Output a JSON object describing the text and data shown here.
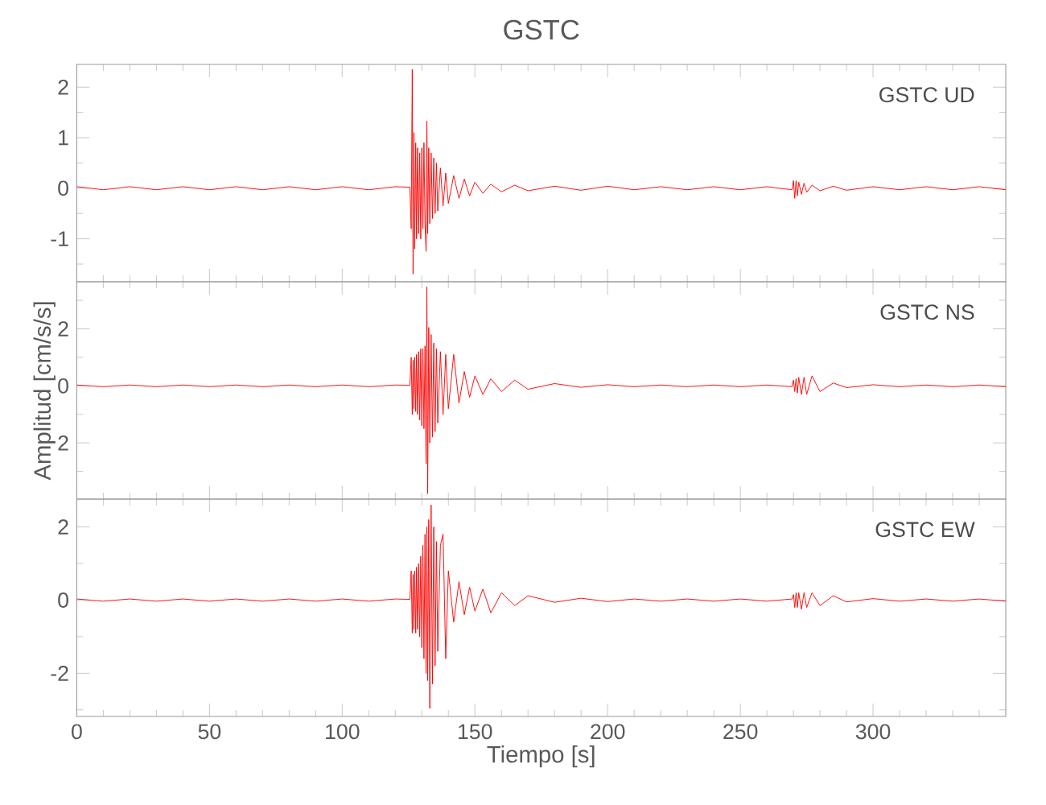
{
  "chart_data": [
    {
      "type": "line",
      "title": "GSTC",
      "annotations": [
        "GSTC UD"
      ],
      "color": "#ff0000",
      "tick_labels": "y",
      "xlim": [
        0,
        350
      ],
      "ylim": [
        -1.85,
        2.45
      ],
      "xticks": [
        0,
        {
          "value": 10,
          "label": null
        },
        {
          "value": 20,
          "label": null
        },
        {
          "value": 30,
          "label": null
        },
        {
          "value": 40,
          "label": null
        },
        50,
        {
          "value": 60,
          "label": null
        },
        {
          "value": 70,
          "label": null
        },
        {
          "value": 80,
          "label": null
        },
        {
          "value": 90,
          "label": null
        },
        100,
        {
          "value": 110,
          "label": null
        },
        {
          "value": 120,
          "label": null
        },
        {
          "value": 130,
          "label": null
        },
        {
          "value": 140,
          "label": null
        },
        150,
        {
          "value": 160,
          "label": null
        },
        {
          "value": 170,
          "label": null
        },
        {
          "value": 180,
          "label": null
        },
        {
          "value": 190,
          "label": null
        },
        200,
        {
          "value": 210,
          "label": null
        },
        {
          "value": 220,
          "label": null
        },
        {
          "value": 230,
          "label": null
        },
        {
          "value": 240,
          "label": null
        },
        250,
        {
          "value": 260,
          "label": null
        },
        {
          "value": 270,
          "label": null
        },
        {
          "value": 280,
          "label": null
        },
        {
          "value": 290,
          "label": null
        },
        300,
        {
          "value": 310,
          "label": null
        },
        {
          "value": 320,
          "label": null
        },
        {
          "value": 330,
          "label": null
        },
        {
          "value": 340,
          "label": null
        }
      ],
      "yticks": [
        {
          "value": -1.5,
          "label": null
        },
        -1,
        {
          "value": -0.5,
          "label": null
        },
        0,
        {
          "value": 0.5,
          "label": null
        },
        1,
        {
          "value": 1.5,
          "label": null
        },
        2
      ],
      "x": [
        0,
        10,
        20,
        30,
        40,
        50,
        60,
        70,
        80,
        90,
        100,
        110,
        120,
        125.5,
        126.0,
        126.4,
        126.7,
        127.0,
        127.3,
        127.7,
        128.0,
        128.4,
        128.8,
        129.2,
        129.6,
        130.0,
        130.4,
        130.8,
        131.2,
        131.6,
        131.9,
        132.2,
        132.6,
        133.0,
        133.5,
        134.0,
        134.5,
        135,
        135.5,
        136,
        137,
        138,
        139,
        140,
        142,
        144,
        146,
        148,
        150,
        153,
        156,
        160,
        165,
        170,
        180,
        190,
        200,
        210,
        220,
        230,
        240,
        250,
        260,
        269.5,
        270,
        270.5,
        271,
        271.5,
        272,
        273,
        274,
        275,
        277,
        280,
        285,
        290,
        300,
        310,
        320,
        330,
        340,
        350
      ],
      "values": [
        0.03,
        -0.03,
        0.03,
        -0.03,
        0.03,
        -0.03,
        0.03,
        -0.03,
        0.03,
        -0.03,
        0.03,
        -0.03,
        0.03,
        0.02,
        -0.8,
        2.35,
        -1.7,
        1.1,
        -1.2,
        0.9,
        -1.0,
        0.8,
        -0.9,
        0.7,
        -1.0,
        0.8,
        -0.8,
        0.9,
        -0.7,
        -1.25,
        1.33,
        -0.9,
        0.8,
        -0.7,
        0.7,
        -0.6,
        0.6,
        -0.5,
        0.5,
        -0.45,
        0.4,
        -0.35,
        0.3,
        -0.3,
        0.25,
        -0.2,
        0.18,
        -0.15,
        0.12,
        -0.1,
        0.08,
        -0.07,
        0.06,
        -0.05,
        0.04,
        -0.04,
        0.04,
        -0.03,
        0.03,
        -0.03,
        0.03,
        -0.03,
        0.03,
        -0.03,
        0.15,
        -0.2,
        0.15,
        -0.15,
        0.12,
        -0.12,
        0.1,
        -0.08,
        0.06,
        -0.05,
        0.04,
        -0.04,
        0.03,
        -0.03,
        0.03,
        -0.03,
        0.03,
        -0.03
      ]
    },
    {
      "type": "line",
      "ylabel": "Amplitud [cm/s/s]",
      "annotations": [
        "GSTC NS"
      ],
      "color": "#ff0000",
      "tick_labels": "y",
      "xlim": [
        0,
        350
      ],
      "ylim": [
        -3.97,
        3.65
      ],
      "xticks": [
        0,
        {
          "value": 10,
          "label": null
        },
        {
          "value": 20,
          "label": null
        },
        {
          "value": 30,
          "label": null
        },
        {
          "value": 40,
          "label": null
        },
        50,
        {
          "value": 60,
          "label": null
        },
        {
          "value": 70,
          "label": null
        },
        {
          "value": 80,
          "label": null
        },
        {
          "value": 90,
          "label": null
        },
        100,
        {
          "value": 110,
          "label": null
        },
        {
          "value": 120,
          "label": null
        },
        {
          "value": 130,
          "label": null
        },
        {
          "value": 140,
          "label": null
        },
        150,
        {
          "value": 160,
          "label": null
        },
        {
          "value": 170,
          "label": null
        },
        {
          "value": 180,
          "label": null
        },
        {
          "value": 190,
          "label": null
        },
        200,
        {
          "value": 210,
          "label": null
        },
        {
          "value": 220,
          "label": null
        },
        {
          "value": 230,
          "label": null
        },
        {
          "value": 240,
          "label": null
        },
        250,
        {
          "value": 260,
          "label": null
        },
        {
          "value": 270,
          "label": null
        },
        {
          "value": 280,
          "label": null
        },
        {
          "value": 290,
          "label": null
        },
        300,
        {
          "value": 310,
          "label": null
        },
        {
          "value": 320,
          "label": null
        },
        {
          "value": 330,
          "label": null
        },
        {
          "value": 340,
          "label": null
        }
      ],
      "yticks": [
        {
          "value": -3,
          "label": null
        },
        {
          "value": -2,
          "label": "2"
        },
        {
          "value": -1,
          "label": null
        },
        0,
        {
          "value": 1,
          "label": null
        },
        2,
        {
          "value": 3,
          "label": null
        }
      ],
      "x": [
        0,
        10,
        20,
        30,
        40,
        50,
        60,
        70,
        80,
        90,
        100,
        110,
        120,
        125.5,
        126.0,
        126.4,
        126.7,
        127.0,
        127.3,
        127.7,
        128.0,
        128.4,
        128.8,
        129.2,
        129.6,
        130.0,
        130.4,
        130.8,
        131.2,
        131.6,
        131.9,
        132.2,
        132.6,
        133.0,
        133.5,
        134.0,
        134.5,
        135,
        135.5,
        136,
        137,
        138,
        139,
        140,
        142,
        144,
        146,
        148,
        150,
        153,
        156,
        160,
        165,
        170,
        180,
        190,
        200,
        210,
        220,
        230,
        240,
        250,
        260,
        269.5,
        270,
        270.5,
        271,
        271.5,
        272,
        273,
        274,
        275,
        277,
        280,
        285,
        290,
        300,
        310,
        320,
        330,
        340,
        350
      ],
      "values": [
        0.03,
        -0.03,
        0.03,
        -0.03,
        0.03,
        -0.03,
        0.03,
        -0.03,
        0.03,
        -0.03,
        0.03,
        -0.03,
        0.03,
        0.02,
        1.0,
        -1.0,
        0.9,
        -0.8,
        1.0,
        -0.9,
        1.1,
        -1.0,
        1.2,
        -1.2,
        1.3,
        -1.4,
        1.3,
        -1.5,
        1.4,
        -2.73,
        3.47,
        -3.78,
        2.05,
        -2.0,
        1.8,
        -1.8,
        1.5,
        -1.6,
        1.3,
        -1.3,
        1.2,
        -1.0,
        1.1,
        -0.8,
        1.1,
        -0.6,
        0.5,
        -0.4,
        0.35,
        -0.3,
        0.25,
        -0.2,
        0.2,
        -0.12,
        0.08,
        -0.05,
        0.04,
        -0.03,
        0.03,
        -0.03,
        0.03,
        -0.03,
        0.03,
        -0.03,
        0.2,
        -0.2,
        0.25,
        -0.25,
        0.3,
        -0.3,
        0.3,
        -0.3,
        0.35,
        -0.2,
        0.1,
        -0.06,
        0.04,
        -0.03,
        0.03,
        -0.03,
        0.03,
        -0.03
      ]
    },
    {
      "type": "line",
      "xlabel": "Tiempo [s]",
      "annotations": [
        "GSTC EW"
      ],
      "color": "#ff0000",
      "xlim": [
        0,
        350
      ],
      "ylim": [
        -3.18,
        2.76
      ],
      "xticks": [
        0,
        {
          "value": 10,
          "label": null
        },
        {
          "value": 20,
          "label": null
        },
        {
          "value": 30,
          "label": null
        },
        {
          "value": 40,
          "label": null
        },
        50,
        {
          "value": 60,
          "label": null
        },
        {
          "value": 70,
          "label": null
        },
        {
          "value": 80,
          "label": null
        },
        {
          "value": 90,
          "label": null
        },
        100,
        {
          "value": 110,
          "label": null
        },
        {
          "value": 120,
          "label": null
        },
        {
          "value": 130,
          "label": null
        },
        {
          "value": 140,
          "label": null
        },
        150,
        {
          "value": 160,
          "label": null
        },
        {
          "value": 170,
          "label": null
        },
        {
          "value": 180,
          "label": null
        },
        {
          "value": 190,
          "label": null
        },
        200,
        {
          "value": 210,
          "label": null
        },
        {
          "value": 220,
          "label": null
        },
        {
          "value": 230,
          "label": null
        },
        {
          "value": 240,
          "label": null
        },
        250,
        {
          "value": 260,
          "label": null
        },
        {
          "value": 270,
          "label": null
        },
        {
          "value": 280,
          "label": null
        },
        {
          "value": 290,
          "label": null
        },
        300,
        {
          "value": 310,
          "label": null
        },
        {
          "value": 320,
          "label": null
        },
        {
          "value": 330,
          "label": null
        },
        {
          "value": 340,
          "label": null
        }
      ],
      "yticks": [
        {
          "value": -3,
          "label": null
        },
        -2,
        {
          "value": -1,
          "label": null
        },
        0,
        {
          "value": 1,
          "label": null
        },
        2
      ],
      "x": [
        0,
        10,
        20,
        30,
        40,
        50,
        60,
        70,
        80,
        90,
        100,
        110,
        120,
        125.5,
        126.0,
        126.4,
        126.7,
        127.0,
        127.3,
        127.7,
        128.0,
        128.4,
        128.8,
        129.2,
        129.6,
        130.0,
        130.4,
        130.8,
        131.2,
        131.6,
        131.9,
        132.2,
        132.6,
        133.0,
        133.5,
        134.0,
        134.5,
        135,
        135.5,
        136,
        137,
        138,
        139,
        140,
        142,
        144,
        146,
        148,
        150,
        153,
        156,
        160,
        165,
        170,
        180,
        190,
        200,
        210,
        220,
        230,
        240,
        250,
        260,
        269.5,
        270,
        270.5,
        271,
        271.5,
        272,
        273,
        274,
        275,
        277,
        280,
        285,
        290,
        300,
        310,
        320,
        330,
        340,
        350
      ],
      "values": [
        0.03,
        -0.03,
        0.03,
        -0.03,
        0.03,
        -0.03,
        0.03,
        -0.03,
        0.03,
        -0.03,
        0.03,
        -0.03,
        0.03,
        0.02,
        0.8,
        -0.9,
        0.7,
        -0.8,
        0.8,
        -0.9,
        0.9,
        -0.8,
        1.0,
        -1.0,
        1.2,
        -1.3,
        1.5,
        -1.6,
        1.8,
        -2.0,
        2.0,
        -2.2,
        2.2,
        -2.96,
        2.6,
        -2.3,
        2.0,
        -1.8,
        1.6,
        -1.4,
        1.5,
        1.8,
        -1.6,
        0.8,
        -0.6,
        0.5,
        -0.4,
        0.35,
        -0.3,
        0.3,
        -0.35,
        0.2,
        -0.15,
        0.12,
        -0.06,
        0.05,
        -0.04,
        0.03,
        -0.03,
        0.03,
        -0.03,
        0.03,
        -0.03,
        0.03,
        0.15,
        -0.2,
        0.2,
        -0.2,
        0.2,
        -0.25,
        0.2,
        -0.2,
        0.2,
        -0.15,
        0.12,
        -0.05,
        0.04,
        -0.03,
        0.03,
        -0.03,
        0.03,
        -0.03
      ]
    }
  ]
}
